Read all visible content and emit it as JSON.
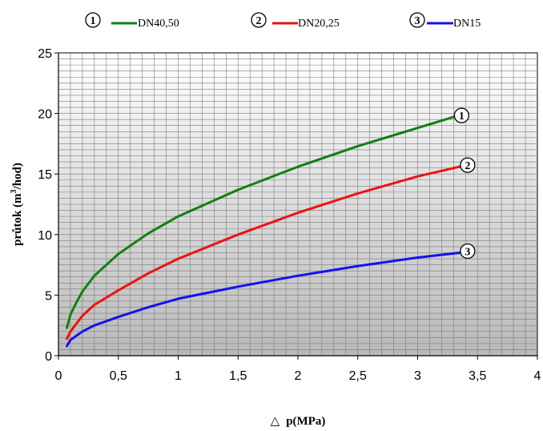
{
  "chart_data": {
    "type": "line",
    "xlabel": "p(MPa)",
    "xlabel_prefix": "△",
    "ylabel_prefix": "průtok (m",
    "ylabel_sup": "3",
    "ylabel_suffix": "/hod)",
    "xlim": [
      0,
      4
    ],
    "ylim": [
      0,
      25
    ],
    "x_ticks": [
      "0",
      "0,5",
      "1",
      "1,5",
      "2",
      "2,5",
      "3",
      "3,5",
      "4"
    ],
    "y_ticks": [
      "0",
      "5",
      "10",
      "15",
      "20",
      "25"
    ],
    "x_tick_values": [
      0,
      0.5,
      1,
      1.5,
      2,
      2.5,
      3,
      3.5,
      4
    ],
    "y_tick_values": [
      0,
      5,
      10,
      15,
      20,
      25
    ],
    "grid": true,
    "legend_position": "top",
    "series": [
      {
        "marker": "1",
        "name": "DN40,50",
        "color": "#118011",
        "x": [
          0.07,
          0.1,
          0.15,
          0.2,
          0.3,
          0.5,
          0.75,
          1.0,
          1.5,
          2.0,
          2.5,
          3.0,
          3.3
        ],
        "y": [
          2.3,
          3.4,
          4.4,
          5.3,
          6.6,
          8.4,
          10.1,
          11.5,
          13.7,
          15.6,
          17.3,
          18.8,
          19.7
        ]
      },
      {
        "marker": "2",
        "name": "DN20,25",
        "color": "#ee1111",
        "x": [
          0.07,
          0.1,
          0.2,
          0.3,
          0.5,
          0.75,
          1.0,
          1.5,
          2.0,
          2.5,
          3.0,
          3.35
        ],
        "y": [
          1.4,
          2.0,
          3.3,
          4.2,
          5.4,
          6.8,
          8.0,
          10.0,
          11.8,
          13.4,
          14.8,
          15.6
        ]
      },
      {
        "marker": "3",
        "name": "DN15",
        "color": "#1111ee",
        "x": [
          0.07,
          0.1,
          0.2,
          0.3,
          0.5,
          0.75,
          1.0,
          1.5,
          2.0,
          2.5,
          3.0,
          3.35
        ],
        "y": [
          0.8,
          1.3,
          2.0,
          2.5,
          3.2,
          4.0,
          4.7,
          5.7,
          6.6,
          7.4,
          8.1,
          8.5
        ]
      }
    ]
  }
}
